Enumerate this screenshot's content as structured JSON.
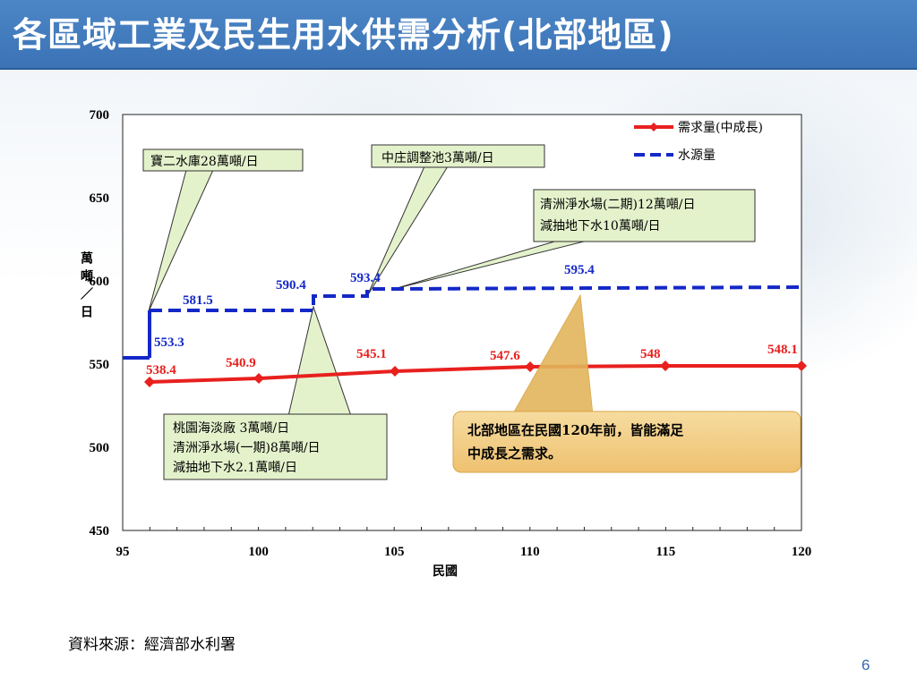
{
  "header": {
    "title": "各區域工業及民生用水供需分析(北部地區)"
  },
  "footer": {
    "source": "資料來源：經濟部水利署",
    "page_number": "6"
  },
  "chart_data": {
    "type": "line",
    "xlabel": "民國",
    "ylabel": "萬噸／日",
    "xlim": [
      95,
      120
    ],
    "ylim": [
      450,
      700
    ],
    "x_ticks": [
      "95",
      "100",
      "105",
      "110",
      "115",
      "120"
    ],
    "y_ticks": [
      "700",
      "650",
      "600",
      "550",
      "500",
      "450"
    ],
    "grid": false,
    "legend_position": "top-right",
    "series": [
      {
        "name": "需求量(中成長)",
        "color": "#e8201e",
        "style": "solid",
        "x": [
          96,
          100,
          105,
          110,
          115,
          120
        ],
        "y": [
          538.4,
          540.9,
          545.1,
          547.6,
          548,
          548.1
        ],
        "labels": [
          "538.4",
          "540.9",
          "545.1",
          "547.6",
          "548",
          "548.1"
        ]
      },
      {
        "name": "水源量",
        "color": "#1428c8",
        "style": "dashed",
        "x": [
          95,
          96,
          96,
          102,
          102,
          104,
          104,
          105,
          120
        ],
        "y": [
          553.3,
          553.3,
          581.5,
          581.5,
          590.4,
          590.4,
          593.4,
          595.4,
          595.4
        ],
        "labels": [
          {
            "text": "553.3",
            "x": 96,
            "y": 553.3
          },
          {
            "text": "581.5",
            "x": 96,
            "y": 581.5
          },
          {
            "text": "590.4",
            "x": 102,
            "y": 590.4
          },
          {
            "text": "593.4",
            "x": 104,
            "y": 593.4
          },
          {
            "text": "595.4",
            "x": 105,
            "y": 595.4
          }
        ]
      }
    ],
    "annotations": [
      {
        "lines": [
          "寶二水庫28萬噸/日"
        ]
      },
      {
        "lines": [
          "中庄調整池3萬噸/日"
        ]
      },
      {
        "lines": [
          "清洲淨水場(二期)12萬噸/日",
          "減抽地下水10萬噸/日"
        ]
      },
      {
        "lines": [
          "桃園海淡廠 3萬噸/日",
          "清洲淨水場(一期)8萬噸/日",
          "減抽地下水2.1萬噸/日"
        ]
      }
    ],
    "note": {
      "lines": [
        "北部地區在民國120年前，皆能滿足",
        "中成長之需求。"
      ]
    }
  }
}
